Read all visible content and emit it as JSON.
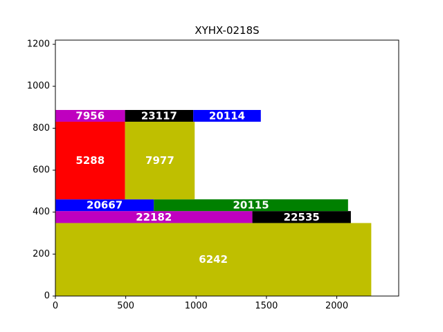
{
  "chart_data": {
    "type": "bar",
    "title": "XYHX-0218S",
    "xlabel": "",
    "ylabel": "",
    "xlim": [
      0,
      2440
    ],
    "ylim": [
      0,
      1220
    ],
    "xticks": [
      0,
      500,
      1000,
      1500,
      2000
    ],
    "yticks": [
      0,
      200,
      400,
      600,
      800,
      1000,
      1200
    ],
    "grid": false,
    "rects": [
      {
        "label": "6242",
        "x0": 0,
        "x1": 2245,
        "y0": 0,
        "y1": 348,
        "color": "#bfbf00"
      },
      {
        "label": "22182",
        "x0": 0,
        "x1": 1400,
        "y0": 348,
        "y1": 405,
        "color": "#bf00bf"
      },
      {
        "label": "22535",
        "x0": 1400,
        "x1": 2100,
        "y0": 348,
        "y1": 405,
        "color": "#000000"
      },
      {
        "label": "20667",
        "x0": 0,
        "x1": 700,
        "y0": 405,
        "y1": 461,
        "color": "#0000ff"
      },
      {
        "label": "20115",
        "x0": 700,
        "x1": 2080,
        "y0": 405,
        "y1": 461,
        "color": "#008000"
      },
      {
        "label": "5288",
        "x0": 0,
        "x1": 495,
        "y0": 461,
        "y1": 831,
        "color": "#ff0000"
      },
      {
        "label": "7977",
        "x0": 495,
        "x1": 990,
        "y0": 461,
        "y1": 831,
        "color": "#bfbf00"
      },
      {
        "label": "7956",
        "x0": 0,
        "x1": 495,
        "y0": 831,
        "y1": 887,
        "color": "#bf00bf"
      },
      {
        "label": "23117",
        "x0": 495,
        "x1": 980,
        "y0": 831,
        "y1": 887,
        "color": "#000000"
      },
      {
        "label": "20114",
        "x0": 980,
        "x1": 1460,
        "y0": 831,
        "y1": 887,
        "color": "#0000ff"
      }
    ]
  }
}
